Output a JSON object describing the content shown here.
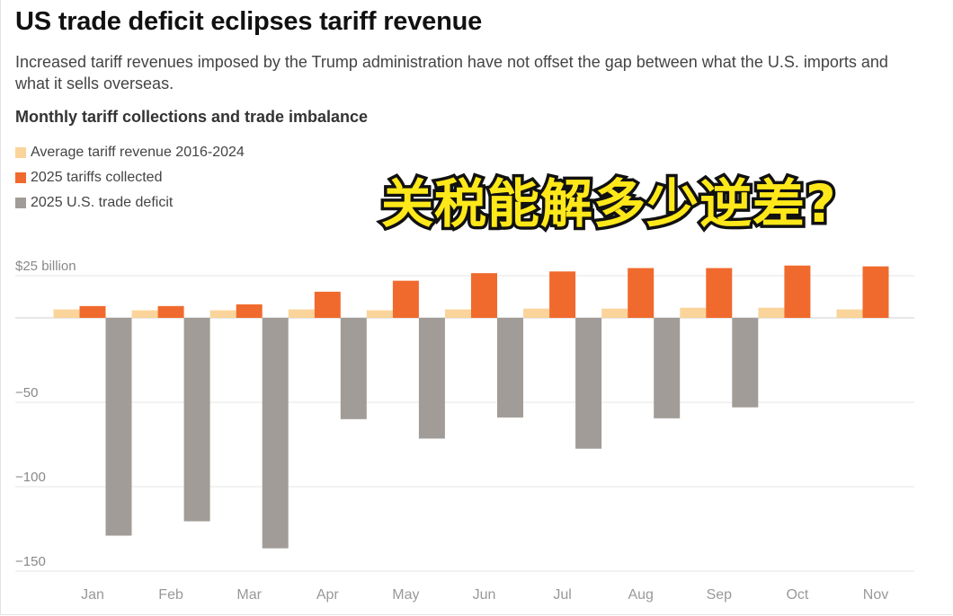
{
  "title": "US trade deficit eclipses tariff revenue",
  "subtitle": "Increased tariff revenues imposed by the Trump administration have not offset the gap between what the U.S. imports and what it sells overseas.",
  "overlay_text": "关税能解多少逆差?",
  "colors": {
    "avg_tariff": "#fad49a",
    "tariffs_2025": "#f06a2d",
    "deficit_2025": "#a19c97",
    "grid": "#e6e6e6",
    "baseline": "#cfcfcf"
  },
  "chart_data": {
    "type": "bar",
    "title": "Monthly tariff collections and trade imbalance",
    "xlabel": "",
    "ylabel": "",
    "ylim": [
      -150,
      25
    ],
    "y_ticks": [
      {
        "value": 25,
        "label": "$25 billion"
      },
      {
        "value": 0,
        "label": ""
      },
      {
        "value": -50,
        "label": "−50"
      },
      {
        "value": -100,
        "label": "−100"
      },
      {
        "value": -150,
        "label": "−150"
      }
    ],
    "categories": [
      "Jan",
      "Feb",
      "Mar",
      "Apr",
      "May",
      "Jun",
      "Jul",
      "Aug",
      "Sep",
      "Oct",
      "Nov"
    ],
    "legend": [
      "Average tariff revenue 2016-2024",
      "2025 tariffs collected",
      "2025 U.S. trade deficit"
    ],
    "series": [
      {
        "name": "Average tariff revenue 2016-2024",
        "color_key": "avg_tariff",
        "values": [
          5,
          4.5,
          4.5,
          5,
          4.5,
          5,
          5.5,
          5.5,
          6,
          6,
          5
        ]
      },
      {
        "name": "2025 tariffs collected",
        "color_key": "tariffs_2025",
        "values": [
          7,
          7,
          8,
          15.5,
          22,
          26.5,
          27.5,
          29.5,
          29.5,
          31,
          30.5
        ]
      },
      {
        "name": "2025 U.S. trade deficit",
        "color_key": "deficit_2025",
        "values": [
          -129,
          -120.5,
          -136.5,
          -60,
          -71.5,
          -59,
          -77.5,
          -59.5,
          -53,
          null,
          null
        ]
      }
    ]
  }
}
